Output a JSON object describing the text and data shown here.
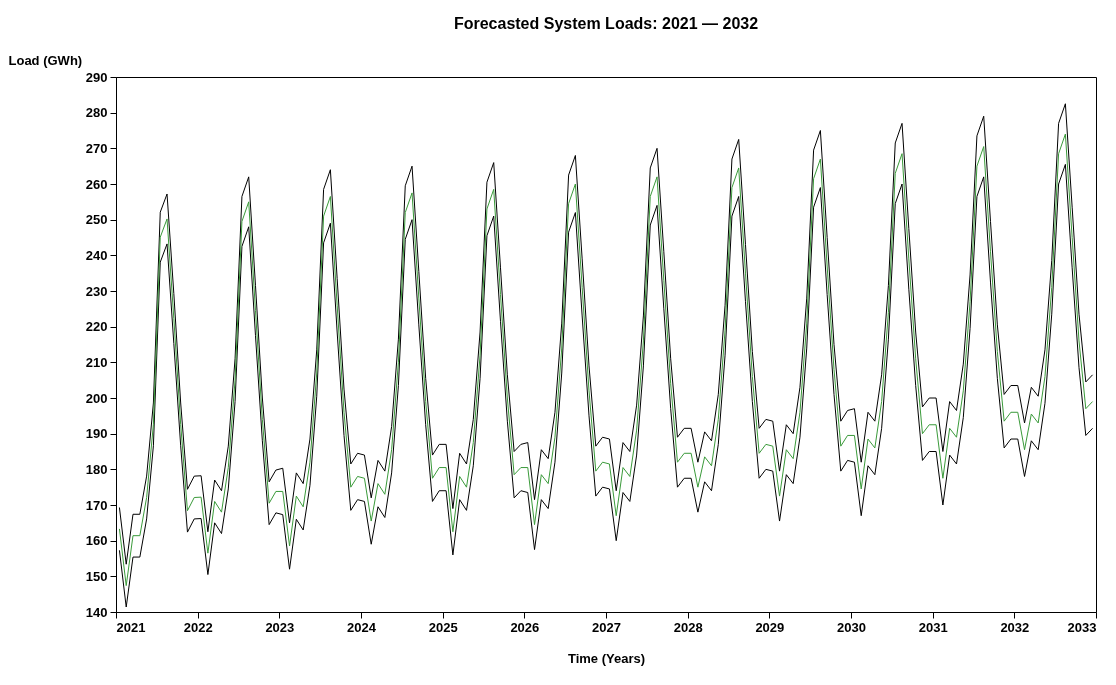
{
  "chart_data": {
    "type": "line",
    "title": "Forecasted System Loads: 2021 — 2032",
    "xlabel": "Time (Years)",
    "ylabel": "Load (GWh)",
    "xlim": [
      2021,
      2033
    ],
    "xticks": [
      2021,
      2022,
      2023,
      2024,
      2025,
      2026,
      2027,
      2028,
      2029,
      2030,
      2031,
      2032,
      2033
    ],
    "ylim": [
      140,
      290
    ],
    "yticks": [
      140,
      150,
      160,
      170,
      180,
      190,
      200,
      210,
      220,
      230,
      240,
      250,
      260,
      270,
      280,
      290
    ],
    "grid": false,
    "x": [
      2021.042,
      2021.125,
      2021.208,
      2021.292,
      2021.375,
      2021.458,
      2021.542,
      2021.625,
      2021.708,
      2021.792,
      2021.875,
      2021.958,
      2022.042,
      2022.125,
      2022.208,
      2022.292,
      2022.375,
      2022.458,
      2022.542,
      2022.625,
      2022.708,
      2022.792,
      2022.875,
      2022.958,
      2023.042,
      2023.125,
      2023.208,
      2023.292,
      2023.375,
      2023.458,
      2023.542,
      2023.625,
      2023.708,
      2023.792,
      2023.875,
      2023.958,
      2024.042,
      2024.125,
      2024.208,
      2024.292,
      2024.375,
      2024.458,
      2024.542,
      2024.625,
      2024.708,
      2024.792,
      2024.875,
      2024.958,
      2025.042,
      2025.125,
      2025.208,
      2025.292,
      2025.375,
      2025.458,
      2025.542,
      2025.625,
      2025.708,
      2025.792,
      2025.875,
      2025.958,
      2026.042,
      2026.125,
      2026.208,
      2026.292,
      2026.375,
      2026.458,
      2026.542,
      2026.625,
      2026.708,
      2026.792,
      2026.875,
      2026.958,
      2027.042,
      2027.125,
      2027.208,
      2027.292,
      2027.375,
      2027.458,
      2027.542,
      2027.625,
      2027.708,
      2027.792,
      2027.875,
      2027.958,
      2028.042,
      2028.125,
      2028.208,
      2028.292,
      2028.375,
      2028.458,
      2028.542,
      2028.625,
      2028.708,
      2028.792,
      2028.875,
      2028.958,
      2029.042,
      2029.125,
      2029.208,
      2029.292,
      2029.375,
      2029.458,
      2029.542,
      2029.625,
      2029.708,
      2029.792,
      2029.875,
      2029.958,
      2030.042,
      2030.125,
      2030.208,
      2030.292,
      2030.375,
      2030.458,
      2030.542,
      2030.625,
      2030.708,
      2030.792,
      2030.875,
      2030.958,
      2031.042,
      2031.125,
      2031.208,
      2031.292,
      2031.375,
      2031.458,
      2031.542,
      2031.625,
      2031.708,
      2031.792,
      2031.875,
      2031.958,
      2032.042,
      2032.125,
      2032.208,
      2032.292,
      2032.375,
      2032.458,
      2032.542,
      2032.625,
      2032.708,
      2032.792,
      2032.875,
      2032.958
    ],
    "series": [
      {
        "color": "#000000",
        "values": [
          169.3,
          153.4,
          167.4,
          167.4,
          178.1,
          198.6,
          252.1,
          257.2,
          229.3,
          198.6,
          174.4,
          178.1,
          178.2,
          162.5,
          177.0,
          174.0,
          186.5,
          211.0,
          256.5,
          262.0,
          231.5,
          200.0,
          176.5,
          179.8,
          180.3,
          165.0,
          179.0,
          176.0,
          188.5,
          213.5,
          258.5,
          264.0,
          233.5,
          202.5,
          181.5,
          184.5,
          184.0,
          172.0,
          182.5,
          179.5,
          192.0,
          216.5,
          259.5,
          265.0,
          235.5,
          205.5,
          184.0,
          187.0,
          187.0,
          169.0,
          184.5,
          181.5,
          194.0,
          218.5,
          260.5,
          266.0,
          236.5,
          206.5,
          185.0,
          187.0,
          187.5,
          171.5,
          185.5,
          183.0,
          196.0,
          221.0,
          262.5,
          268.0,
          239.0,
          209.0,
          186.5,
          189.0,
          188.5,
          174.0,
          187.5,
          185.0,
          198.0,
          223.0,
          264.5,
          270.0,
          241.0,
          211.0,
          189.0,
          191.5,
          191.5,
          182.0,
          190.5,
          188.0,
          201.0,
          226.0,
          267.0,
          272.5,
          243.0,
          213.0,
          191.5,
          194.0,
          193.5,
          179.5,
          192.5,
          190.0,
          203.0,
          228.0,
          269.5,
          275.0,
          245.0,
          215.0,
          193.5,
          196.5,
          197.0,
          182.0,
          196.0,
          193.5,
          206.5,
          231.5,
          271.5,
          277.0,
          247.5,
          218.5,
          197.5,
          200.0,
          200.0,
          185.0,
          199.0,
          196.5,
          209.5,
          234.5,
          273.5,
          279.0,
          249.5,
          220.5,
          201.0,
          203.5,
          203.5,
          193.0,
          203.0,
          200.5,
          213.5,
          238.5,
          277.0,
          282.5,
          253.5,
          223.5,
          204.5,
          206.5
        ]
      },
      {
        "color": "#000000",
        "values": [
          157.3,
          141.4,
          155.4,
          155.4,
          166.1,
          186.6,
          238.1,
          243.2,
          215.3,
          186.6,
          162.4,
          166.1,
          166.2,
          150.5,
          165.0,
          162.0,
          174.5,
          199.0,
          242.5,
          248.0,
          217.5,
          188.0,
          164.5,
          167.8,
          167.3,
          152.0,
          166.0,
          163.0,
          175.5,
          200.5,
          243.5,
          249.0,
          218.5,
          189.5,
          168.5,
          171.5,
          171.0,
          159.0,
          169.5,
          166.5,
          179.0,
          203.5,
          244.5,
          250.0,
          220.5,
          192.5,
          171.0,
          174.0,
          174.0,
          156.0,
          171.5,
          168.5,
          181.0,
          205.5,
          245.5,
          251.0,
          221.5,
          193.5,
          172.0,
          174.0,
          173.5,
          157.5,
          171.5,
          169.0,
          182.0,
          207.0,
          246.5,
          252.0,
          223.0,
          195.0,
          172.5,
          175.0,
          174.5,
          160.0,
          173.5,
          171.0,
          184.0,
          209.0,
          248.5,
          254.0,
          225.0,
          197.0,
          175.0,
          177.5,
          177.5,
          168.0,
          176.5,
          174.0,
          187.0,
          212.0,
          251.0,
          256.5,
          227.0,
          199.0,
          177.5,
          180.0,
          179.5,
          165.5,
          178.5,
          176.0,
          189.0,
          214.0,
          253.5,
          259.0,
          229.0,
          201.0,
          179.5,
          182.5,
          182.0,
          167.0,
          181.0,
          178.5,
          191.5,
          216.5,
          254.5,
          260.0,
          230.5,
          203.5,
          182.5,
          185.0,
          185.0,
          170.0,
          184.0,
          181.5,
          194.5,
          219.5,
          256.5,
          262.0,
          232.5,
          205.5,
          186.0,
          188.5,
          188.5,
          178.0,
          188.0,
          185.5,
          198.5,
          223.5,
          260.0,
          265.5,
          236.5,
          208.5,
          189.5,
          191.5
        ]
      },
      {
        "color": "#3a9a3a",
        "values": [
          163.3,
          147.4,
          161.4,
          161.4,
          172.1,
          192.6,
          245.1,
          250.2,
          222.3,
          192.6,
          168.4,
          172.1,
          172.2,
          156.5,
          171.0,
          168.0,
          180.5,
          205.0,
          249.5,
          255.0,
          224.5,
          194.0,
          170.5,
          173.8,
          173.8,
          158.5,
          172.5,
          169.5,
          182.0,
          207.0,
          251.0,
          256.5,
          226.0,
          196.0,
          175.0,
          178.0,
          177.5,
          165.5,
          176.0,
          173.0,
          185.5,
          210.0,
          252.0,
          257.5,
          228.0,
          199.0,
          177.5,
          180.5,
          180.5,
          162.5,
          178.0,
          175.0,
          187.5,
          212.0,
          253.0,
          258.5,
          229.0,
          200.0,
          178.5,
          180.5,
          180.5,
          164.5,
          178.5,
          176.0,
          189.0,
          214.0,
          254.5,
          260.0,
          231.0,
          202.0,
          179.5,
          182.0,
          181.5,
          167.0,
          180.5,
          178.0,
          191.0,
          216.0,
          256.5,
          262.0,
          233.0,
          204.0,
          182.0,
          184.5,
          184.5,
          175.0,
          183.5,
          181.0,
          194.0,
          219.0,
          259.0,
          264.5,
          235.0,
          206.0,
          184.5,
          187.0,
          186.5,
          172.5,
          185.5,
          183.0,
          196.0,
          221.0,
          261.5,
          267.0,
          237.0,
          208.0,
          186.5,
          189.5,
          189.5,
          174.5,
          188.5,
          186.0,
          199.0,
          224.0,
          263.0,
          268.5,
          239.0,
          211.0,
          190.0,
          192.5,
          192.5,
          177.5,
          191.5,
          189.0,
          202.0,
          227.0,
          265.0,
          270.5,
          241.0,
          213.0,
          193.5,
          196.0,
          196.0,
          185.5,
          195.5,
          193.0,
          206.0,
          231.0,
          268.5,
          274.0,
          245.0,
          216.0,
          197.0,
          199.0
        ]
      }
    ]
  }
}
